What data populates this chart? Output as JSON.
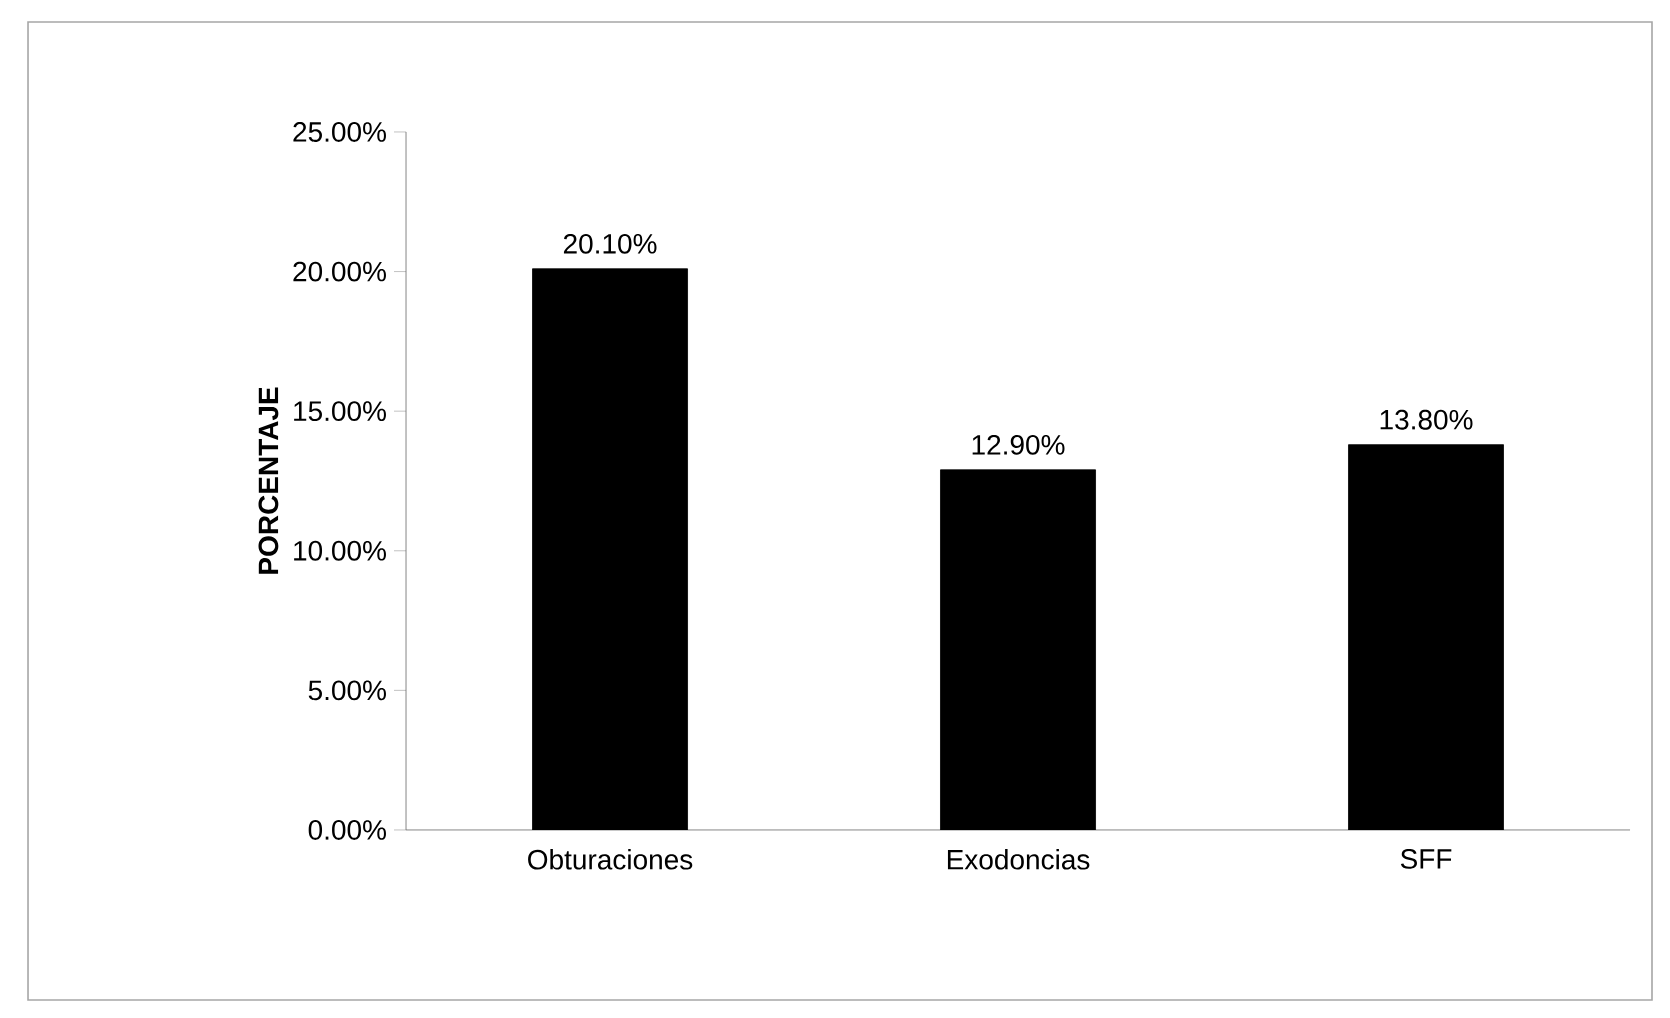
{
  "chart_data": {
    "type": "bar",
    "ylabel": "PORCENTAJE",
    "categories": [
      "Obturaciones",
      "Exodoncias",
      "SFF"
    ],
    "values": [
      20.1,
      12.9,
      13.8
    ],
    "value_labels": [
      "20.10%",
      "12.90%",
      "13.80%"
    ],
    "color": "#000000",
    "ylim": [
      0,
      25
    ],
    "yticks": [
      {
        "value": 0,
        "label": "0.00%"
      },
      {
        "value": 5,
        "label": "5.00%"
      },
      {
        "value": 10,
        "label": "10.00%"
      },
      {
        "value": 15,
        "label": "15.00%"
      },
      {
        "value": 20,
        "label": "20.00%"
      },
      {
        "value": 25,
        "label": "25.00%"
      }
    ],
    "grid": false
  }
}
